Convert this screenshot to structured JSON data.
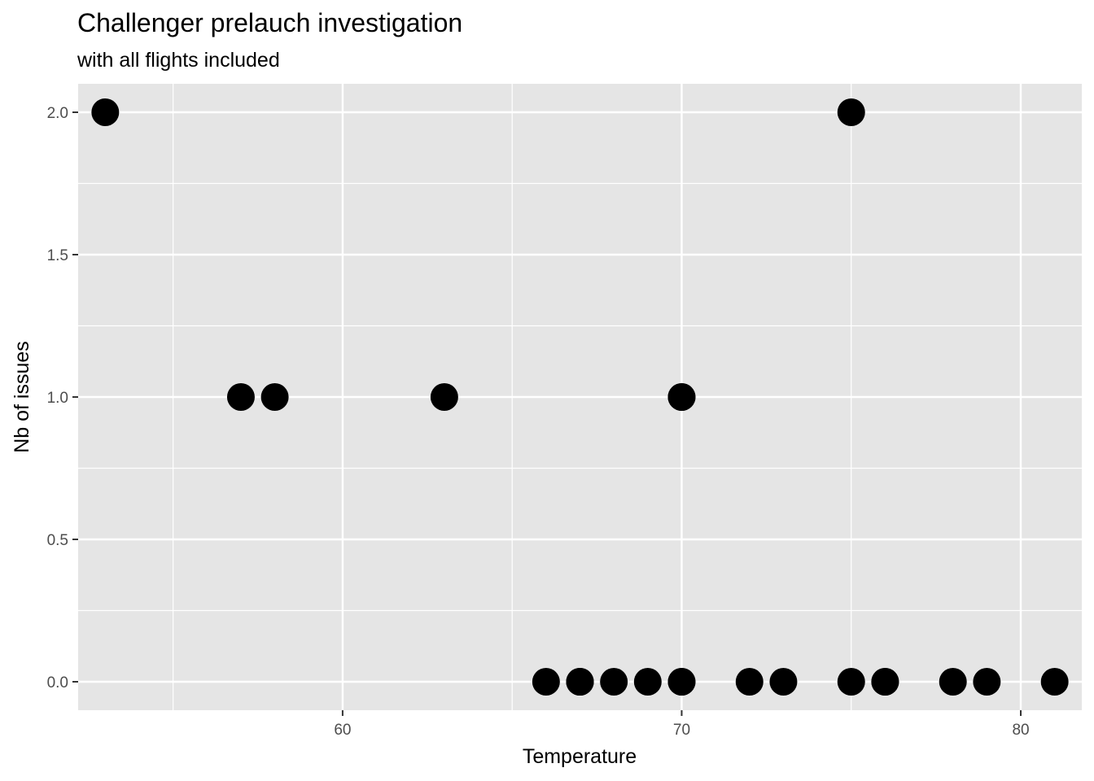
{
  "chart_data": {
    "type": "scatter",
    "title": "Challenger prelauch investigation",
    "subtitle": "with all flights included",
    "xlabel": "Temperature",
    "ylabel": "Nb of issues",
    "xlim": [
      52.2,
      81.8
    ],
    "ylim": [
      -0.1,
      2.1
    ],
    "x_ticks": [
      60,
      70,
      80
    ],
    "x_tick_labels": [
      "60",
      "70",
      "80"
    ],
    "y_ticks": [
      0,
      0.5,
      1,
      1.5,
      2
    ],
    "y_tick_labels": [
      "0.0",
      "0.5",
      "1.0",
      "1.5",
      "2.0"
    ],
    "grid": true,
    "point_color": "#000000",
    "panel_color": "#e5e5e5",
    "grid_color": "#ffffff",
    "points": [
      {
        "x": 53,
        "y": 2
      },
      {
        "x": 57,
        "y": 1
      },
      {
        "x": 58,
        "y": 1
      },
      {
        "x": 63,
        "y": 1
      },
      {
        "x": 66,
        "y": 0
      },
      {
        "x": 67,
        "y": 0
      },
      {
        "x": 67,
        "y": 0
      },
      {
        "x": 67,
        "y": 0
      },
      {
        "x": 68,
        "y": 0
      },
      {
        "x": 69,
        "y": 0
      },
      {
        "x": 70,
        "y": 0
      },
      {
        "x": 70,
        "y": 0
      },
      {
        "x": 70,
        "y": 1
      },
      {
        "x": 70,
        "y": 1
      },
      {
        "x": 72,
        "y": 0
      },
      {
        "x": 73,
        "y": 0
      },
      {
        "x": 75,
        "y": 0
      },
      {
        "x": 75,
        "y": 2
      },
      {
        "x": 76,
        "y": 0
      },
      {
        "x": 76,
        "y": 0
      },
      {
        "x": 78,
        "y": 0
      },
      {
        "x": 79,
        "y": 0
      },
      {
        "x": 81,
        "y": 0
      }
    ]
  }
}
